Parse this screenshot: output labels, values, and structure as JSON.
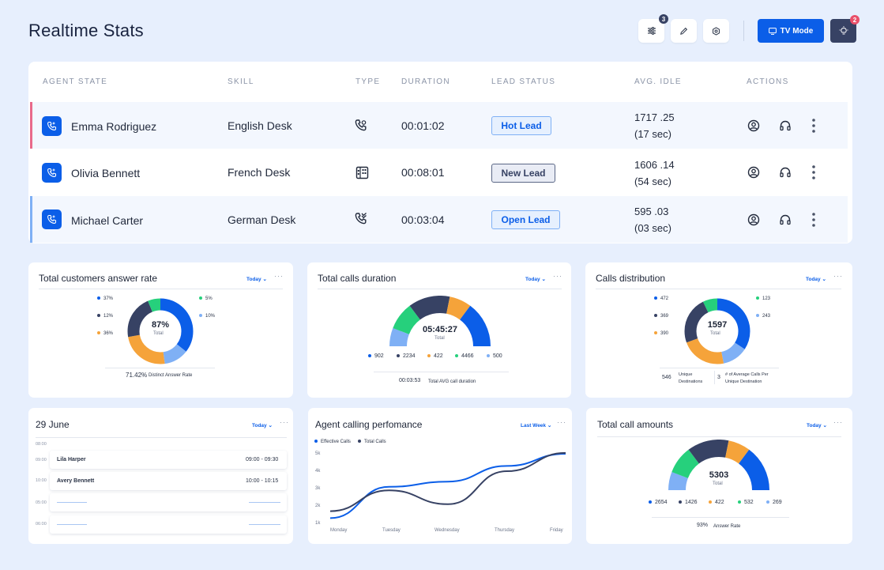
{
  "header": {
    "title": "Realtime Stats",
    "filter_badge": "3",
    "tv_mode_label": "TV Mode",
    "notif_badge": "2"
  },
  "table": {
    "columns": [
      "AGENT STATE",
      "SKILL",
      "TYPE",
      "DURATION",
      "LEAD STATUS",
      "AVG. IDLE",
      "ACTIONS"
    ],
    "rows": [
      {
        "name": "Emma Rodriguez",
        "skill": "English Desk",
        "type_icon": "phone-incoming-icon",
        "duration": "00:01:02",
        "lead": "Hot Lead",
        "idle1": "1717 .25",
        "idle2": "(17 sec)"
      },
      {
        "name": "Olivia Bennett",
        "skill": "French Desk",
        "type_icon": "building-icon",
        "duration": "00:08:01",
        "lead": "New Lead",
        "idle1": "1606 .14",
        "idle2": "(54 sec)"
      },
      {
        "name": "Michael Carter",
        "skill": "German Desk",
        "type_icon": "phone-missed-icon",
        "duration": "00:03:04",
        "lead": "Open Lead",
        "idle1": "595 .03",
        "idle2": "(03 sec)"
      }
    ]
  },
  "colors": {
    "accent": "#0b5ee8",
    "dark": "#374264",
    "green": "#26d07c",
    "orange": "#f5a33a",
    "light": "#7fb0f5",
    "hot_lead_bar": "#e96a8a",
    "open_lead_bar": "#7fb0f5"
  },
  "cards": {
    "answer_rate": {
      "title": "Total customers answer rate",
      "range": "Today",
      "center_value": "87%",
      "center_label": "Total",
      "legend": [
        "37%",
        "12%",
        "36%",
        "5%",
        "10%"
      ],
      "footer_value": "71.42%",
      "footer_label": "Distinct Answer Rate"
    },
    "calls_duration": {
      "title": "Total calls duration",
      "range": "Today",
      "center_value": "05:45:27",
      "center_label": "Total",
      "legend": [
        "902",
        "2234",
        "422",
        "4466",
        "500"
      ],
      "footer_value": "00:03:53",
      "footer_label": "Total AVG call duration"
    },
    "distribution": {
      "title": "Calls distribution",
      "range": "Today",
      "center_value": "1597",
      "center_label": "Total",
      "legend": [
        "472",
        "369",
        "390",
        "123",
        "243"
      ],
      "footer_left_value": "546",
      "footer_left_label1": "Unique",
      "footer_left_label2": "Destinations",
      "footer_right_value": "3",
      "footer_right_label1": "# of Average Calls Per",
      "footer_right_label2": "Unique Destination"
    },
    "schedule": {
      "title": "29 June",
      "range": "Today",
      "times": [
        "08:00",
        "09:00",
        "10:00",
        "05:00",
        "06:00"
      ],
      "events": [
        {
          "name": "Lila Harper",
          "time": "09:00 - 09:30"
        },
        {
          "name": "Avery Bennett",
          "time": "10:00 - 10:15"
        }
      ]
    },
    "performance": {
      "title": "Agent calling perfomance",
      "range": "Last Week",
      "legend": [
        "Effective Calls",
        "Total Calls"
      ]
    },
    "amounts": {
      "title": "Total call amounts",
      "range": "Today",
      "center_value": "5303",
      "center_label": "Total",
      "legend": [
        "2654",
        "1426",
        "422",
        "532",
        "269"
      ],
      "footer_value": "93%",
      "footer_label": "Answer Rate"
    }
  },
  "chart_data": {
    "type": "line",
    "title": "Agent calling perfomance",
    "categories": [
      "Monday",
      "Tuesday",
      "Wednesday",
      "Thursday",
      "Friday"
    ],
    "y_ticks": [
      "1k",
      "2k",
      "3k",
      "4k",
      "5k"
    ],
    "ylim": [
      1000,
      5000
    ],
    "legend_position": "top-left",
    "series": [
      {
        "name": "Effective Calls",
        "values": [
          1300,
          3100,
          3400,
          4300,
          5000
        ]
      },
      {
        "name": "Total Calls",
        "values": [
          1700,
          2900,
          2100,
          4000,
          5050
        ]
      }
    ]
  }
}
